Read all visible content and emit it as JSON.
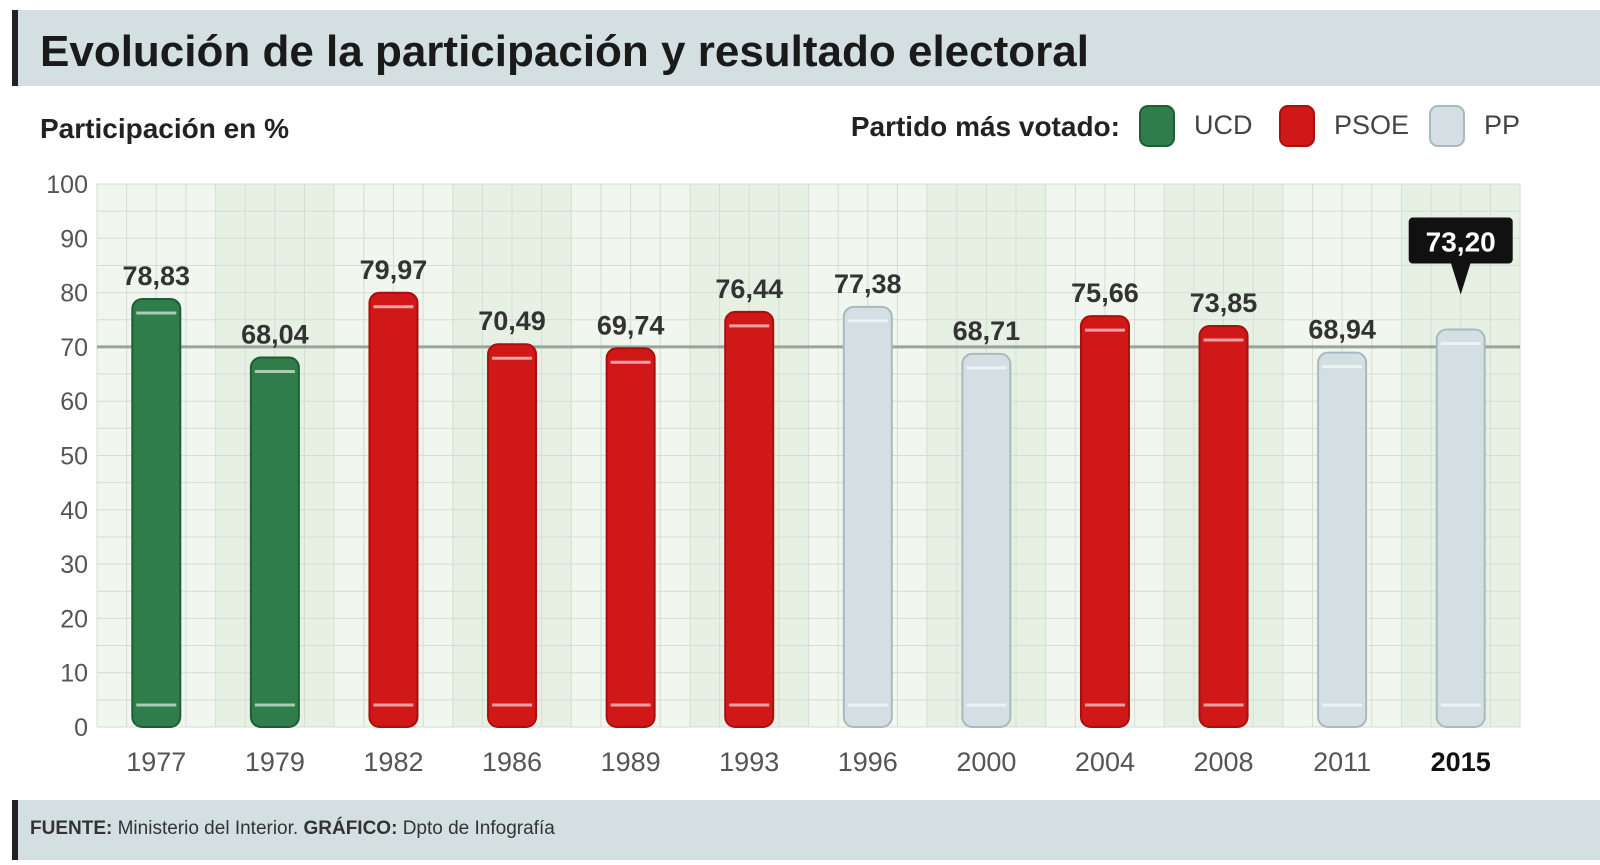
{
  "chart_data": {
    "type": "bar",
    "title": "Evolución de la participación y resultado electoral",
    "ylabel": "Participación en %",
    "legend_title": "Partido más votado:",
    "legend": [
      {
        "name": "UCD",
        "color": "#2e7d4a"
      },
      {
        "name": "PSOE",
        "color": "#d01818"
      },
      {
        "name": "PP",
        "color": "#d3dfe3"
      }
    ],
    "legend_placement": "top-right",
    "ylim": [
      0,
      100
    ],
    "yticks": [
      "0",
      "10",
      "20",
      "30",
      "40",
      "50",
      "60",
      "70",
      "80",
      "90",
      "100"
    ],
    "grid": true,
    "categories": [
      "1977",
      "1979",
      "1982",
      "1986",
      "1989",
      "1993",
      "1996",
      "2000",
      "2004",
      "2008",
      "2011",
      "2015"
    ],
    "values": [
      78.83,
      68.04,
      79.97,
      70.49,
      69.74,
      76.44,
      77.38,
      68.71,
      75.66,
      73.85,
      68.94,
      73.2
    ],
    "value_labels": [
      "78,83",
      "68,04",
      "79,97",
      "70,49",
      "69,74",
      "76,44",
      "77,38",
      "68,71",
      "75,66",
      "73,85",
      "68,94",
      "73,20"
    ],
    "party": [
      "UCD",
      "UCD",
      "PSOE",
      "PSOE",
      "PSOE",
      "PSOE",
      "PP",
      "PP",
      "PSOE",
      "PSOE",
      "PP",
      "PP"
    ],
    "highlight": "2015"
  },
  "footer": {
    "source_label": "FUENTE:",
    "source": "Ministerio del Interior.",
    "graphic_label": "GRÁFICO:",
    "graphic": "Dpto de Infografía"
  }
}
